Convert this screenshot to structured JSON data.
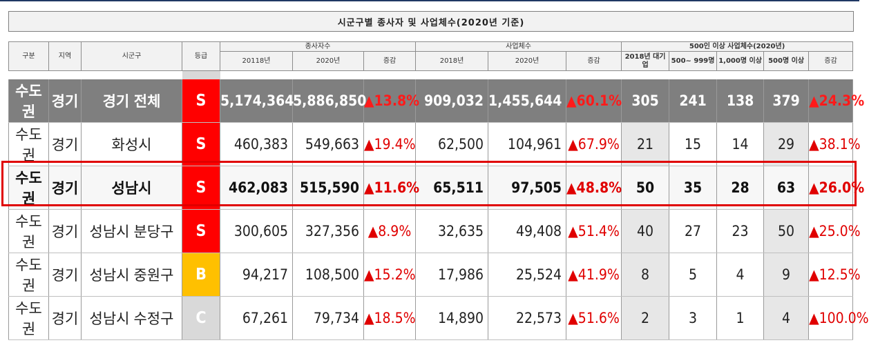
{
  "title": "시군구별 종사자 및 사업체수(2020년 기준)",
  "headers": {
    "group": "구분",
    "region": "지역",
    "district": "시군구",
    "grade": "등급",
    "employees": "종사자수",
    "businesses": "사업체수",
    "large500": "500인 이상 사업체수(2020년)",
    "emp_2018": "20118년",
    "emp_2020": "2020년",
    "emp_change": "증감",
    "biz_2018": "2018년",
    "biz_2020": "2020년",
    "biz_change": "증감",
    "l_2018_large": "2018년 대기업",
    "l_500_999": "500~ 999명",
    "l_1000": "1,000명 이상",
    "l_500": "500명 이상",
    "l_change": "증감"
  },
  "colors": {
    "S": "#ff0000",
    "B": "#ffc000",
    "C": "#d9d9d9"
  },
  "rows": [
    {
      "group": "수도권",
      "region": "경기",
      "district": "경기 전체",
      "grade": "S",
      "emp2018": "5,174,364",
      "emp2020": "5,886,850",
      "empChg": "▲13.8%",
      "biz2018": "909,032",
      "biz2020": "1,455,644",
      "bizChg": "▲60.1%",
      "l2018": "305",
      "l500_999": "241",
      "l1000": "138",
      "l500": "379",
      "lChg": "▲24.3%"
    },
    {
      "group": "수도권",
      "region": "경기",
      "district": "화성시",
      "grade": "S",
      "emp2018": "460,383",
      "emp2020": "549,663",
      "empChg": "▲19.4%",
      "biz2018": "62,500",
      "biz2020": "104,961",
      "bizChg": "▲67.9%",
      "l2018": "21",
      "l500_999": "15",
      "l1000": "14",
      "l500": "29",
      "lChg": "▲38.1%"
    },
    {
      "group": "수도권",
      "region": "경기",
      "district": "성남시",
      "grade": "S",
      "emp2018": "462,083",
      "emp2020": "515,590",
      "empChg": "▲11.6%",
      "biz2018": "65,511",
      "biz2020": "97,505",
      "bizChg": "▲48.8%",
      "l2018": "50",
      "l500_999": "35",
      "l1000": "28",
      "l500": "63",
      "lChg": "▲26.0%"
    },
    {
      "group": "수도권",
      "region": "경기",
      "district": "성남시 분당구",
      "grade": "S",
      "emp2018": "300,605",
      "emp2020": "327,356",
      "empChg": "▲8.9%",
      "biz2018": "32,635",
      "biz2020": "49,408",
      "bizChg": "▲51.4%",
      "l2018": "40",
      "l500_999": "27",
      "l1000": "23",
      "l500": "50",
      "lChg": "▲25.0%"
    },
    {
      "group": "수도권",
      "region": "경기",
      "district": "성남시 중원구",
      "grade": "B",
      "emp2018": "94,217",
      "emp2020": "108,500",
      "empChg": "▲15.2%",
      "biz2018": "17,986",
      "biz2020": "25,524",
      "bizChg": "▲41.9%",
      "l2018": "8",
      "l500_999": "5",
      "l1000": "4",
      "l500": "9",
      "lChg": "▲12.5%"
    },
    {
      "group": "수도권",
      "region": "경기",
      "district": "성남시 수정구",
      "grade": "C",
      "emp2018": "67,261",
      "emp2020": "79,734",
      "empChg": "▲18.5%",
      "biz2018": "14,890",
      "biz2020": "22,573",
      "bizChg": "▲51.6%",
      "l2018": "2",
      "l500_999": "3",
      "l1000": "1",
      "l500": "4",
      "lChg": "▲100.0%"
    }
  ]
}
